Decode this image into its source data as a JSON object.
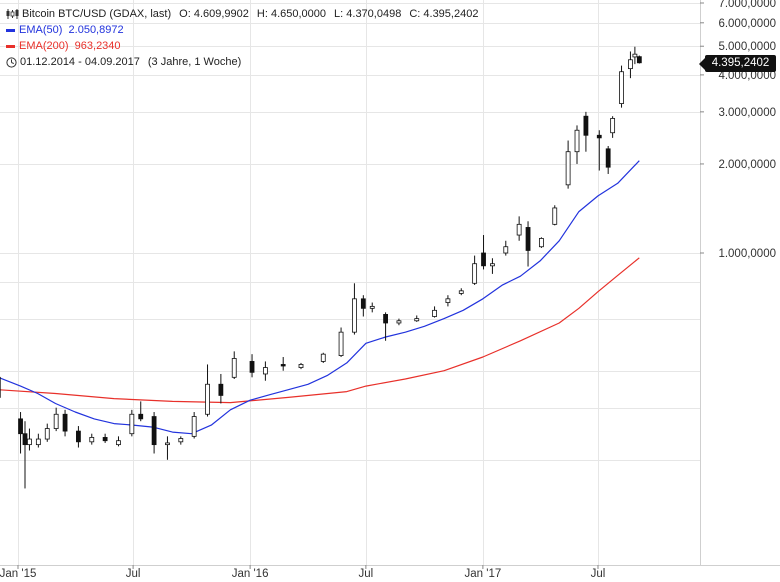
{
  "legend": {
    "instrument": "Bitcoin BTC/USD (GDAX, last)",
    "open_label": "O:",
    "open": "4.609,9902",
    "high_label": "H:",
    "high": "4.650,0000",
    "low_label": "L:",
    "low": "4.370,0498",
    "close_label": "C:",
    "close": "4.395,2402",
    "ema50_label": "EMA(50)",
    "ema50_value": "2.050,8972",
    "ema200_label": "EMA(200)",
    "ema200_value": "963,2340",
    "date_range": "01.12.2014 - 04.09.2017",
    "period": "(3 Jahre, 1 Woche)"
  },
  "price_badge": "4.395,2402",
  "colors": {
    "ema50": "#2233dd",
    "ema200": "#e8302a",
    "candle": "#111111",
    "grid": "#e6e6e6"
  },
  "icons": {
    "ohlc": "candlestick-icon",
    "range": "clock-icon"
  },
  "chart_data": {
    "type": "line",
    "title": "Bitcoin BTC/USD (GDAX, last)",
    "scale": "log",
    "grid": true,
    "legend_position": "top-left",
    "ylim": [
      150,
      8000
    ],
    "y_ticks": [
      {
        "value": 1000,
        "label": "1.000,0000"
      },
      {
        "value": 2000,
        "label": "2.000,0000"
      },
      {
        "value": 3000,
        "label": "3.000,0000"
      },
      {
        "value": 4000,
        "label": "4.000,0000"
      },
      {
        "value": 5000,
        "label": "5.000,0000"
      },
      {
        "value": 6000,
        "label": "6.000,0000"
      },
      {
        "value": 7000,
        "label": "7.000,0000"
      }
    ],
    "x_ticks": [
      {
        "date": "2015-01-01",
        "label": "Jan '15"
      },
      {
        "date": "2015-07-01",
        "label": "Jul"
      },
      {
        "date": "2016-01-01",
        "label": "Jan '16"
      },
      {
        "date": "2016-07-01",
        "label": "Jul"
      },
      {
        "date": "2017-01-01",
        "label": "Jan '17"
      },
      {
        "date": "2017-07-01",
        "label": "Jul"
      }
    ],
    "candles": [
      {
        "date": "2014-12-01",
        "o": 380,
        "h": 385,
        "l": 320,
        "c": 325
      },
      {
        "date": "2015-01-05",
        "o": 275,
        "h": 290,
        "l": 210,
        "c": 245
      },
      {
        "date": "2015-01-12",
        "o": 245,
        "h": 270,
        "l": 160,
        "c": 225
      },
      {
        "date": "2015-01-19",
        "o": 225,
        "h": 255,
        "l": 215,
        "c": 235
      },
      {
        "date": "2015-02-02",
        "o": 225,
        "h": 245,
        "l": 220,
        "c": 235
      },
      {
        "date": "2015-02-16",
        "o": 235,
        "h": 265,
        "l": 230,
        "c": 255
      },
      {
        "date": "2015-03-02",
        "o": 255,
        "h": 300,
        "l": 250,
        "c": 285
      },
      {
        "date": "2015-03-16",
        "o": 285,
        "h": 295,
        "l": 240,
        "c": 250
      },
      {
        "date": "2015-04-06",
        "o": 250,
        "h": 260,
        "l": 220,
        "c": 230
      },
      {
        "date": "2015-04-27",
        "o": 230,
        "h": 245,
        "l": 225,
        "c": 238
      },
      {
        "date": "2015-05-18",
        "o": 238,
        "h": 245,
        "l": 228,
        "c": 232
      },
      {
        "date": "2015-06-08",
        "o": 225,
        "h": 240,
        "l": 222,
        "c": 232
      },
      {
        "date": "2015-06-29",
        "o": 245,
        "h": 295,
        "l": 240,
        "c": 285
      },
      {
        "date": "2015-07-13",
        "o": 285,
        "h": 315,
        "l": 270,
        "c": 275
      },
      {
        "date": "2015-08-03",
        "o": 280,
        "h": 290,
        "l": 210,
        "c": 225
      },
      {
        "date": "2015-08-24",
        "o": 225,
        "h": 240,
        "l": 200,
        "c": 228
      },
      {
        "date": "2015-09-14",
        "o": 230,
        "h": 240,
        "l": 225,
        "c": 236
      },
      {
        "date": "2015-10-05",
        "o": 240,
        "h": 290,
        "l": 236,
        "c": 280
      },
      {
        "date": "2015-10-26",
        "o": 285,
        "h": 420,
        "l": 280,
        "c": 360
      },
      {
        "date": "2015-11-16",
        "o": 360,
        "h": 390,
        "l": 310,
        "c": 330
      },
      {
        "date": "2015-12-07",
        "o": 380,
        "h": 465,
        "l": 375,
        "c": 440
      },
      {
        "date": "2016-01-04",
        "o": 430,
        "h": 455,
        "l": 380,
        "c": 395
      },
      {
        "date": "2016-01-25",
        "o": 390,
        "h": 430,
        "l": 370,
        "c": 410
      },
      {
        "date": "2016-02-22",
        "o": 420,
        "h": 445,
        "l": 400,
        "c": 415
      },
      {
        "date": "2016-03-21",
        "o": 410,
        "h": 425,
        "l": 405,
        "c": 420
      },
      {
        "date": "2016-04-25",
        "o": 430,
        "h": 460,
        "l": 425,
        "c": 455
      },
      {
        "date": "2016-05-23",
        "o": 450,
        "h": 560,
        "l": 445,
        "c": 540
      },
      {
        "date": "2016-06-13",
        "o": 540,
        "h": 790,
        "l": 530,
        "c": 700
      },
      {
        "date": "2016-06-27",
        "o": 700,
        "h": 720,
        "l": 610,
        "c": 650
      },
      {
        "date": "2016-07-11",
        "o": 650,
        "h": 680,
        "l": 630,
        "c": 660
      },
      {
        "date": "2016-08-01",
        "o": 620,
        "h": 630,
        "l": 505,
        "c": 580
      },
      {
        "date": "2016-08-22",
        "o": 580,
        "h": 600,
        "l": 570,
        "c": 590
      },
      {
        "date": "2016-09-19",
        "o": 590,
        "h": 615,
        "l": 585,
        "c": 600
      },
      {
        "date": "2016-10-17",
        "o": 610,
        "h": 660,
        "l": 605,
        "c": 640
      },
      {
        "date": "2016-11-07",
        "o": 680,
        "h": 720,
        "l": 660,
        "c": 700
      },
      {
        "date": "2016-11-28",
        "o": 730,
        "h": 760,
        "l": 720,
        "c": 745
      },
      {
        "date": "2016-12-19",
        "o": 790,
        "h": 980,
        "l": 780,
        "c": 920
      },
      {
        "date": "2017-01-02",
        "o": 1000,
        "h": 1150,
        "l": 880,
        "c": 905
      },
      {
        "date": "2017-01-16",
        "o": 905,
        "h": 960,
        "l": 850,
        "c": 920
      },
      {
        "date": "2017-02-06",
        "o": 1000,
        "h": 1100,
        "l": 980,
        "c": 1050
      },
      {
        "date": "2017-02-27",
        "o": 1150,
        "h": 1330,
        "l": 1100,
        "c": 1250
      },
      {
        "date": "2017-03-13",
        "o": 1220,
        "h": 1280,
        "l": 900,
        "c": 1020
      },
      {
        "date": "2017-04-03",
        "o": 1050,
        "h": 1130,
        "l": 1040,
        "c": 1120
      },
      {
        "date": "2017-04-24",
        "o": 1250,
        "h": 1450,
        "l": 1240,
        "c": 1420
      },
      {
        "date": "2017-05-15",
        "o": 1700,
        "h": 2400,
        "l": 1650,
        "c": 2200
      },
      {
        "date": "2017-05-29",
        "o": 2200,
        "h": 2700,
        "l": 2000,
        "c": 2600
      },
      {
        "date": "2017-06-12",
        "o": 2900,
        "h": 3000,
        "l": 2200,
        "c": 2500
      },
      {
        "date": "2017-07-03",
        "o": 2500,
        "h": 2600,
        "l": 1900,
        "c": 2450
      },
      {
        "date": "2017-07-17",
        "o": 2250,
        "h": 2300,
        "l": 1850,
        "c": 1950
      },
      {
        "date": "2017-07-24",
        "o": 2550,
        "h": 2900,
        "l": 2450,
        "c": 2850
      },
      {
        "date": "2017-08-07",
        "o": 3200,
        "h": 4300,
        "l": 3100,
        "c": 4100
      },
      {
        "date": "2017-08-21",
        "o": 4200,
        "h": 4800,
        "l": 3900,
        "c": 4500
      },
      {
        "date": "2017-08-28",
        "o": 4600,
        "h": 4980,
        "l": 4350,
        "c": 4700
      },
      {
        "date": "2017-09-04",
        "o": 4609.99,
        "h": 4650,
        "l": 4370.05,
        "c": 4395.24
      }
    ],
    "series": [
      {
        "name": "EMA(50)",
        "color": "#2233dd",
        "points": [
          [
            "2014-12-01",
            380
          ],
          [
            "2015-01-05",
            355
          ],
          [
            "2015-02-01",
            335
          ],
          [
            "2015-03-01",
            310
          ],
          [
            "2015-04-01",
            290
          ],
          [
            "2015-05-01",
            275
          ],
          [
            "2015-06-01",
            265
          ],
          [
            "2015-07-01",
            262
          ],
          [
            "2015-08-01",
            258
          ],
          [
            "2015-09-01",
            248
          ],
          [
            "2015-10-01",
            245
          ],
          [
            "2015-11-01",
            262
          ],
          [
            "2015-12-01",
            295
          ],
          [
            "2016-01-01",
            318
          ],
          [
            "2016-02-01",
            332
          ],
          [
            "2016-03-01",
            345
          ],
          [
            "2016-04-01",
            360
          ],
          [
            "2016-05-01",
            385
          ],
          [
            "2016-06-01",
            425
          ],
          [
            "2016-07-01",
            495
          ],
          [
            "2016-08-01",
            520
          ],
          [
            "2016-09-01",
            540
          ],
          [
            "2016-10-01",
            565
          ],
          [
            "2016-11-01",
            600
          ],
          [
            "2016-12-01",
            640
          ],
          [
            "2017-01-01",
            700
          ],
          [
            "2017-02-01",
            780
          ],
          [
            "2017-03-01",
            835
          ],
          [
            "2017-04-01",
            940
          ],
          [
            "2017-05-01",
            1100
          ],
          [
            "2017-06-01",
            1380
          ],
          [
            "2017-07-01",
            1560
          ],
          [
            "2017-08-01",
            1720
          ],
          [
            "2017-09-04",
            2050.9
          ]
        ]
      },
      {
        "name": "EMA(200)",
        "color": "#e8302a",
        "points": [
          [
            "2014-12-01",
            345
          ],
          [
            "2015-03-01",
            335
          ],
          [
            "2015-06-01",
            322
          ],
          [
            "2015-09-01",
            315
          ],
          [
            "2015-12-01",
            312
          ],
          [
            "2016-03-01",
            325
          ],
          [
            "2016-06-01",
            340
          ],
          [
            "2016-07-01",
            355
          ],
          [
            "2016-09-01",
            375
          ],
          [
            "2016-11-01",
            400
          ],
          [
            "2017-01-01",
            445
          ],
          [
            "2017-03-01",
            505
          ],
          [
            "2017-05-01",
            580
          ],
          [
            "2017-06-01",
            650
          ],
          [
            "2017-07-01",
            740
          ],
          [
            "2017-08-01",
            840
          ],
          [
            "2017-09-04",
            963.2
          ]
        ]
      }
    ]
  }
}
